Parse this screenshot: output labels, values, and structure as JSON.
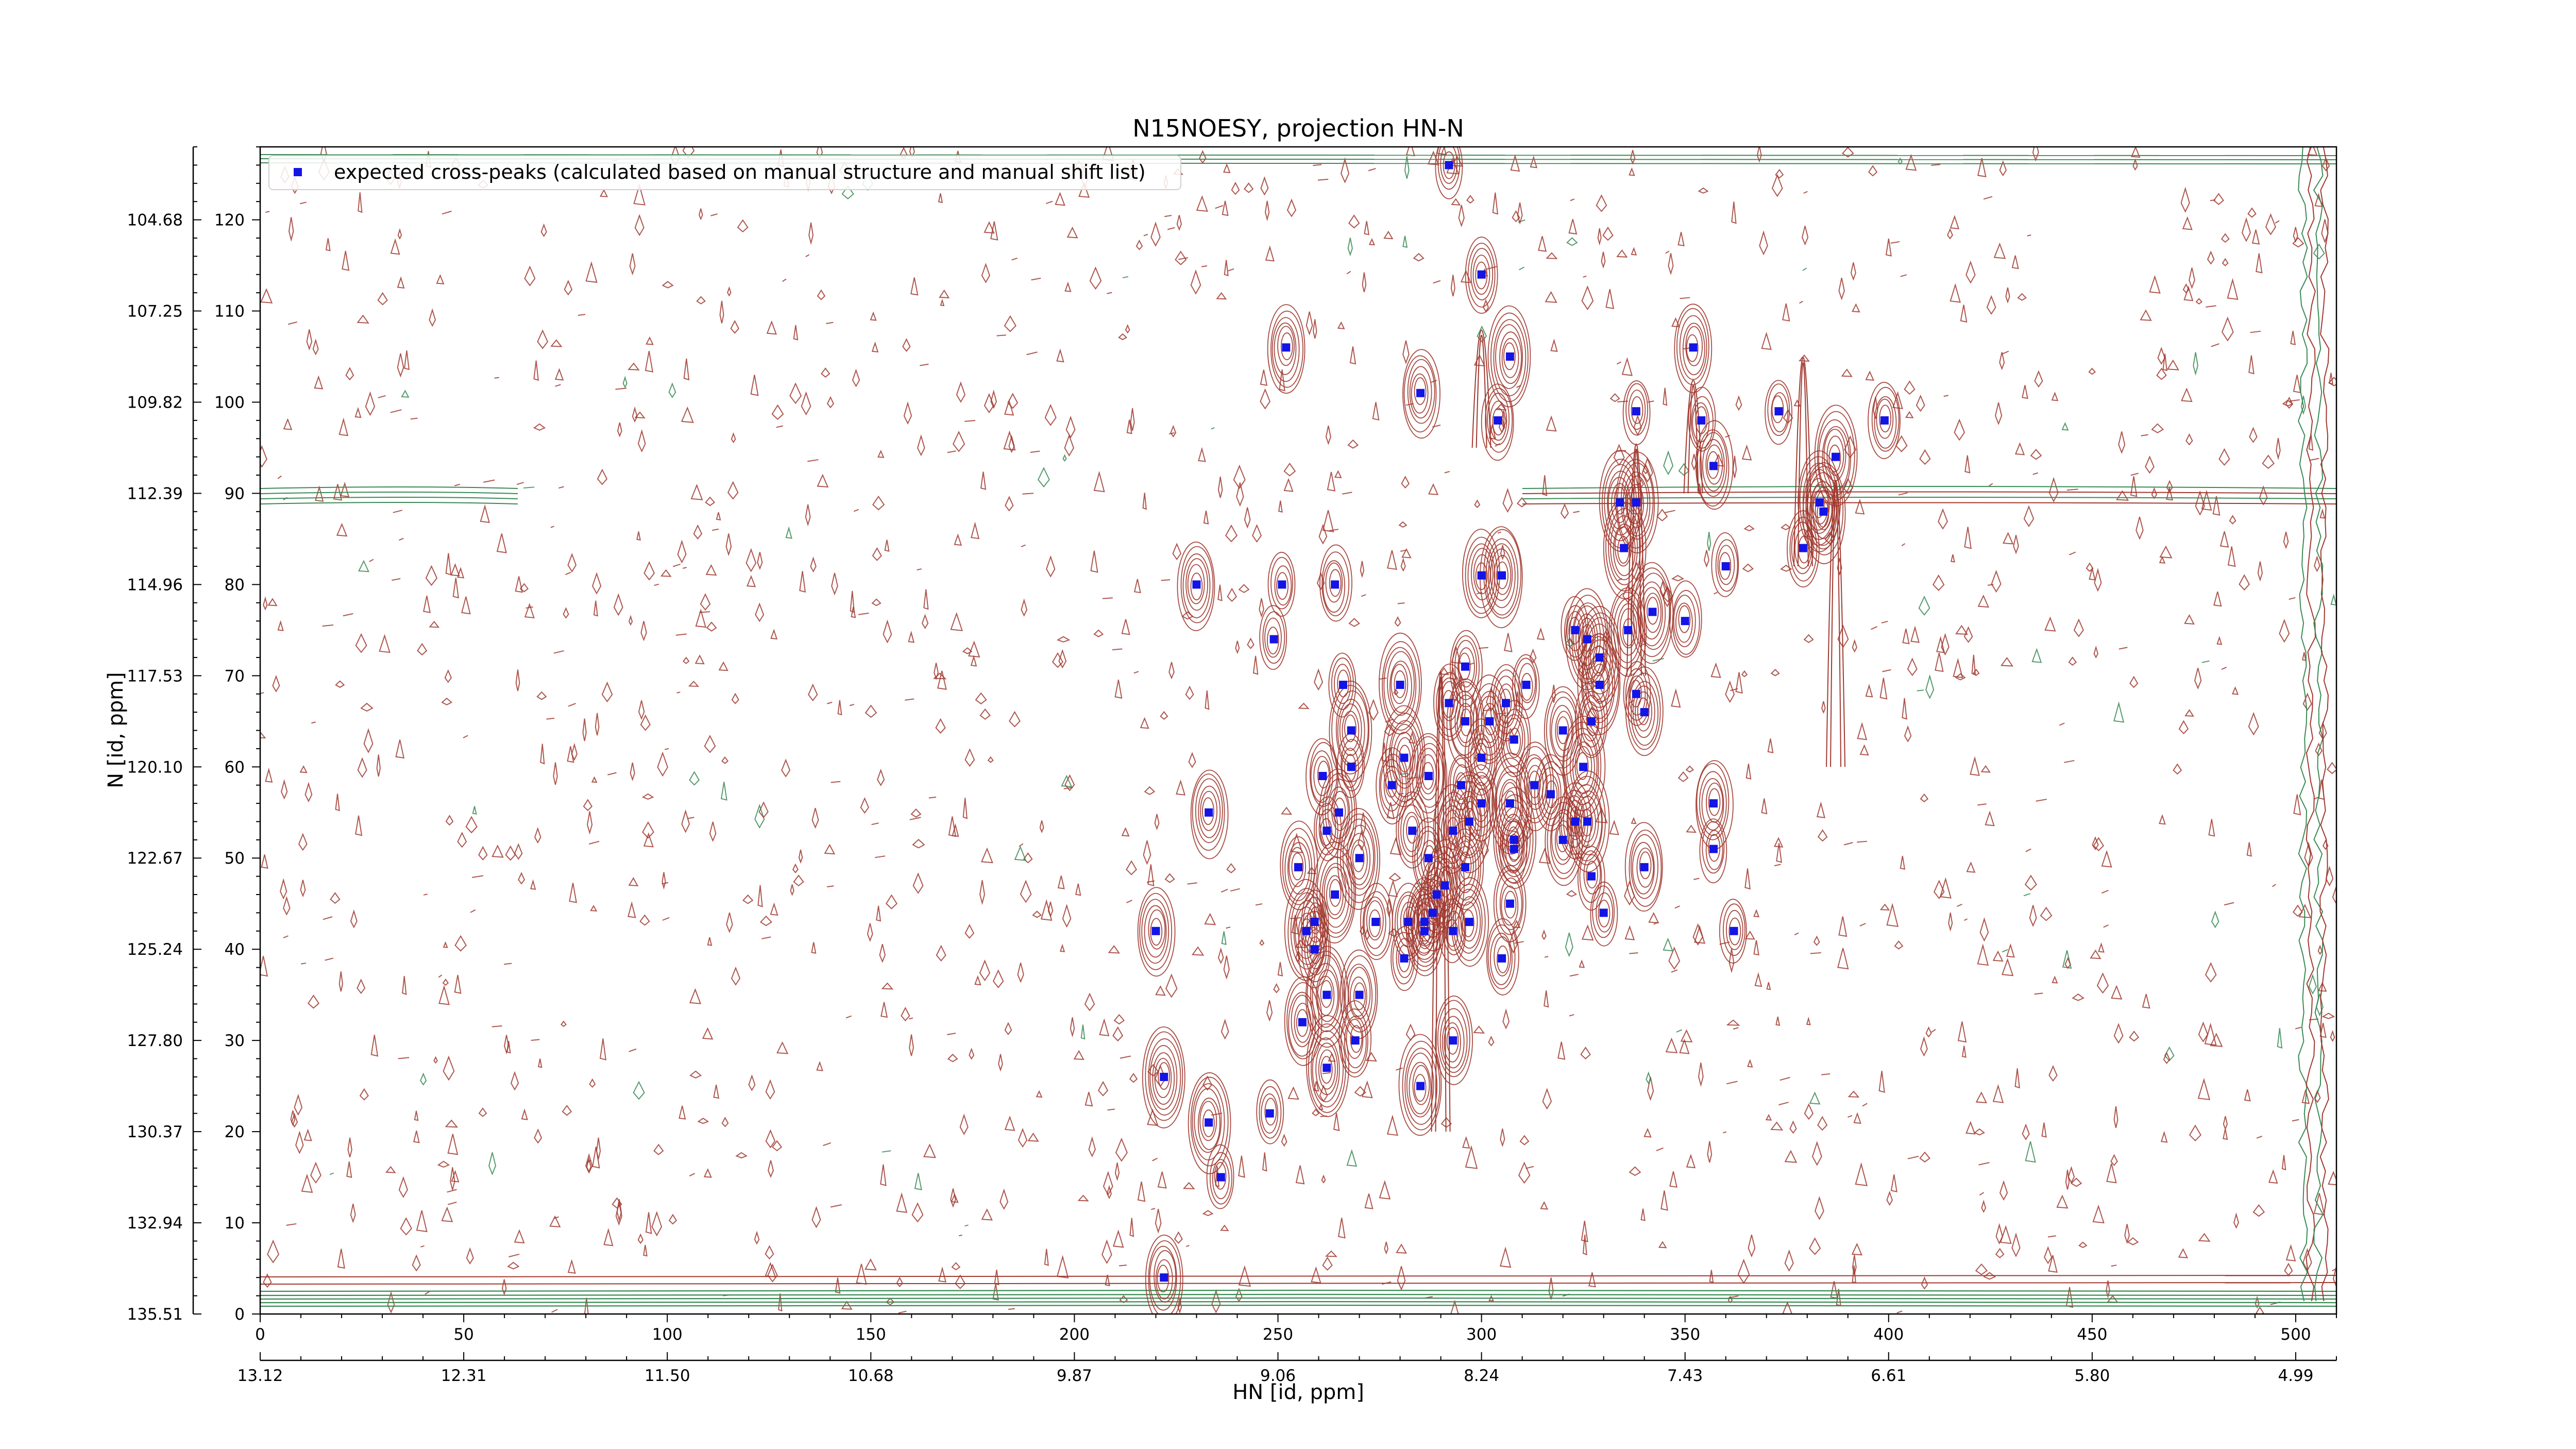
{
  "chart_data": {
    "type": "scatter",
    "title": "N15NOESY, projection HN-N",
    "xlabel": "HN [id, ppm]",
    "ylabel": "N [id, ppm]",
    "xlim": [
      0,
      510
    ],
    "ylim": [
      0,
      128
    ],
    "x_ticks": [
      0,
      50,
      100,
      150,
      200,
      250,
      300,
      350,
      400,
      450,
      500
    ],
    "y_ticks": [
      0,
      10,
      20,
      30,
      40,
      50,
      60,
      70,
      80,
      90,
      100,
      110,
      120
    ],
    "x_ppm_ticks": [
      {
        "x": 0,
        "label": "13.12"
      },
      {
        "x": 50,
        "label": "12.31"
      },
      {
        "x": 100,
        "label": "11.50"
      },
      {
        "x": 150,
        "label": "10.68"
      },
      {
        "x": 200,
        "label": "9.87"
      },
      {
        "x": 250,
        "label": "9.06"
      },
      {
        "x": 300,
        "label": "8.24"
      },
      {
        "x": 350,
        "label": "7.43"
      },
      {
        "x": 400,
        "label": "6.61"
      },
      {
        "x": 450,
        "label": "5.80"
      },
      {
        "x": 500,
        "label": "4.99"
      }
    ],
    "y_ppm_ticks": [
      {
        "y": 0,
        "label": "135.51"
      },
      {
        "y": 10,
        "label": "132.94"
      },
      {
        "y": 20,
        "label": "130.37"
      },
      {
        "y": 30,
        "label": "127.80"
      },
      {
        "y": 40,
        "label": "125.24"
      },
      {
        "y": 50,
        "label": "122.67"
      },
      {
        "y": 60,
        "label": "120.10"
      },
      {
        "y": 70,
        "label": "117.53"
      },
      {
        "y": 80,
        "label": "114.96"
      },
      {
        "y": 90,
        "label": "112.39"
      },
      {
        "y": 100,
        "label": "109.82"
      },
      {
        "y": 110,
        "label": "107.25"
      },
      {
        "y": 120,
        "label": "104.68"
      }
    ],
    "legend": {
      "placement": "top-left",
      "entries": [
        "expected cross-peaks (calculated based on manual structure and manual shift list)"
      ]
    },
    "grid": false,
    "colors": {
      "peaks": "#1414e6",
      "positive_contours": "#a0392f",
      "negative_contours": "#3a8a55"
    },
    "series": [
      {
        "name": "expected cross-peaks (calculated based on manual structure and manual shift list)",
        "points": [
          [
            292,
            126
          ],
          [
            300,
            114
          ],
          [
            252,
            106
          ],
          [
            307,
            105
          ],
          [
            285,
            101
          ],
          [
            304,
            98
          ],
          [
            338,
            99
          ],
          [
            352,
            106
          ],
          [
            354,
            98
          ],
          [
            357,
            93
          ],
          [
            373,
            99
          ],
          [
            387,
            94
          ],
          [
            399,
            98
          ],
          [
            338,
            89
          ],
          [
            334,
            89
          ],
          [
            335,
            84
          ],
          [
            379,
            84
          ],
          [
            383,
            89
          ],
          [
            384,
            88
          ],
          [
            230,
            80
          ],
          [
            251,
            80
          ],
          [
            264,
            80
          ],
          [
            249,
            74
          ],
          [
            300,
            81
          ],
          [
            305,
            81
          ],
          [
            342,
            77
          ],
          [
            350,
            76
          ],
          [
            360,
            82
          ],
          [
            323,
            75
          ],
          [
            326,
            74
          ],
          [
            329,
            72
          ],
          [
            336,
            75
          ],
          [
            266,
            69
          ],
          [
            280,
            69
          ],
          [
            296,
            71
          ],
          [
            311,
            69
          ],
          [
            329,
            69
          ],
          [
            338,
            68
          ],
          [
            340,
            66
          ],
          [
            268,
            64
          ],
          [
            281,
            61
          ],
          [
            292,
            67
          ],
          [
            296,
            65
          ],
          [
            302,
            65
          ],
          [
            306,
            67
          ],
          [
            300,
            61
          ],
          [
            308,
            63
          ],
          [
            320,
            64
          ],
          [
            327,
            65
          ],
          [
            325,
            60
          ],
          [
            268,
            60
          ],
          [
            261,
            59
          ],
          [
            287,
            59
          ],
          [
            278,
            58
          ],
          [
            295,
            58
          ],
          [
            313,
            58
          ],
          [
            307,
            56
          ],
          [
            317,
            57
          ],
          [
            300,
            56
          ],
          [
            357,
            56
          ],
          [
            233,
            55
          ],
          [
            265,
            55
          ],
          [
            262,
            53
          ],
          [
            283,
            53
          ],
          [
            293,
            53
          ],
          [
            297,
            54
          ],
          [
            308,
            51
          ],
          [
            320,
            52
          ],
          [
            323,
            54
          ],
          [
            326,
            54
          ],
          [
            357,
            51
          ],
          [
            255,
            49
          ],
          [
            270,
            50
          ],
          [
            287,
            50
          ],
          [
            296,
            49
          ],
          [
            327,
            48
          ],
          [
            340,
            49
          ],
          [
            308,
            52
          ],
          [
            264,
            46
          ],
          [
            291,
            47
          ],
          [
            289,
            46
          ],
          [
            274,
            43
          ],
          [
            259,
            43
          ],
          [
            257,
            42
          ],
          [
            220,
            42
          ],
          [
            286,
            43
          ],
          [
            288,
            44
          ],
          [
            282,
            43
          ],
          [
            286,
            42
          ],
          [
            293,
            42
          ],
          [
            297,
            43
          ],
          [
            330,
            44
          ],
          [
            307,
            45
          ],
          [
            362,
            42
          ],
          [
            259,
            40
          ],
          [
            281,
            39
          ],
          [
            305,
            39
          ],
          [
            262,
            35
          ],
          [
            270,
            35
          ],
          [
            256,
            32
          ],
          [
            269,
            30
          ],
          [
            262,
            27
          ],
          [
            293,
            30
          ],
          [
            222,
            26
          ],
          [
            285,
            25
          ],
          [
            233,
            21
          ],
          [
            248,
            22
          ],
          [
            236,
            15
          ],
          [
            222,
            4
          ]
        ]
      }
    ]
  }
}
